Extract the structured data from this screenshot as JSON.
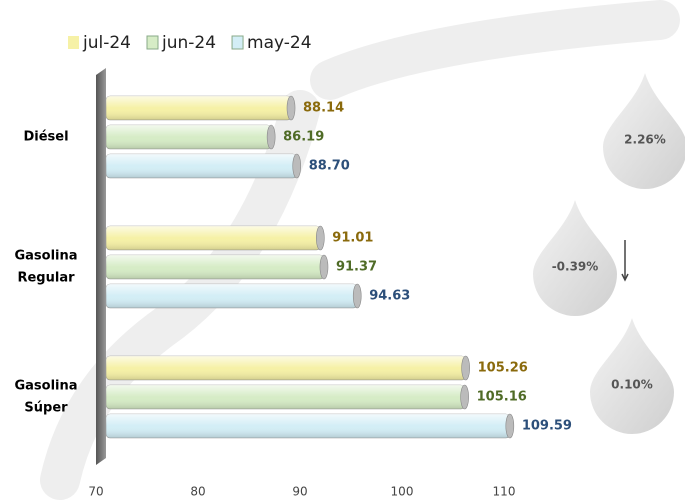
{
  "chart_data": {
    "type": "bar",
    "orientation": "horizontal",
    "categories": [
      "Diésel",
      [
        "Gasolina",
        "Regular"
      ],
      [
        "Gasolina",
        "Súper"
      ]
    ],
    "series": [
      {
        "name": "jul-24",
        "color": "#f6f1a6",
        "label_color": "#8a6a0c",
        "values": [
          88.14,
          91.01,
          105.26
        ]
      },
      {
        "name": "jun-24",
        "color": "#d6ecc6",
        "label_color": "#4f6b26",
        "values": [
          86.19,
          91.37,
          105.16
        ]
      },
      {
        "name": "may-24",
        "color": "#d3eef6",
        "label_color": "#2c4f7a",
        "values": [
          88.7,
          94.63,
          109.59
        ]
      }
    ],
    "value_labels": [
      [
        "88.14",
        "91.01",
        "105.26"
      ],
      [
        "86.19",
        "91.37",
        "105.16"
      ],
      [
        "88.70",
        "94.63",
        "109.59"
      ]
    ],
    "xlim": [
      70,
      120
    ],
    "xticks": [
      70,
      80,
      90,
      100,
      110
    ],
    "legend": "top-left",
    "annotations": [
      {
        "text": "2.26%",
        "arrow": "up"
      },
      {
        "text": "-0.39%",
        "arrow": "down"
      },
      {
        "text": "0.10%"
      }
    ]
  }
}
